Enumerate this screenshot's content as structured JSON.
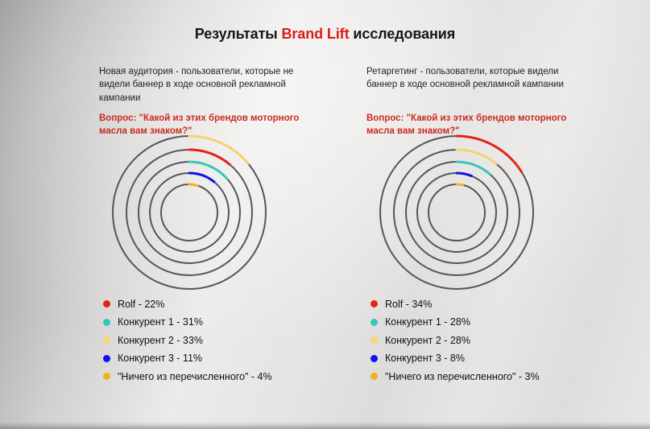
{
  "title": {
    "prefix": "Результаты ",
    "highlight": "Brand Lift",
    "suffix": " исследования"
  },
  "colors": {
    "title_text": "#161616",
    "brand_red": "#d81e14",
    "question_red": "#cb2a20",
    "ring_gray": "#54555b",
    "body_text": "#222222"
  },
  "rings_layout": {
    "ring_radii": [
      95,
      78,
      63,
      49,
      35
    ],
    "ring_stroke_width": 2,
    "arc_stroke_width": 3,
    "start_angle": "top",
    "direction": "clockwise"
  },
  "chart_data": [
    {
      "type": "radial-ring-chart",
      "panel": "new_audience",
      "audience": "Новая аудитория - пользователи, которые не видели баннер в ходе основной рекламной кампании",
      "question": "Вопрос: \"Какой из этих брендов моторного масла вам знаком?\"",
      "unit": "%",
      "series": [
        {
          "name": "Rolf",
          "value": 22,
          "color": "#e2231a"
        },
        {
          "name": "Конкурент 1",
          "value": 31,
          "color": "#38c6b9"
        },
        {
          "name": "Конкурент 2",
          "value": 33,
          "color": "#f8d57d"
        },
        {
          "name": "Конкурент 3",
          "value": 11,
          "color": "#0f11ef"
        },
        {
          "name": "\"Ничего из перечисленного\"",
          "value": 4,
          "color": "#f5b01d"
        }
      ],
      "rings_outer_to_inner": [
        {
          "series": "Конкурент 2",
          "color": "#f6d173",
          "arc_deg": 50
        },
        {
          "series": "Rolf",
          "color": "#e2231a",
          "arc_deg": 40
        },
        {
          "series": "Конкурент 1",
          "color": "#38c6b9",
          "arc_deg": 48
        },
        {
          "series": "Конкурент 3",
          "color": "#0f11ef",
          "arc_deg": 39
        },
        {
          "series": "\"Ничего из перечисленного\"",
          "color": "#f5b01d",
          "arc_deg": 17
        }
      ],
      "legend": [
        {
          "label": "Rolf - 22%",
          "color": "#e2231a"
        },
        {
          "label": "Конкурент 1 - 31%",
          "color": "#38c6b9"
        },
        {
          "label": "Конкурент 2 - 33%",
          "color": "#f8d57d"
        },
        {
          "label": "Конкурент 3 - 11%",
          "color": "#0f11ef"
        },
        {
          "label": "\"Ничего из перечисленного\" - 4%",
          "color": "#f5b01d"
        }
      ]
    },
    {
      "type": "radial-ring-chart",
      "panel": "retargeting",
      "audience": "Ретаргетинг - пользователи, которые видели баннер в ходе основной рекламной кампании",
      "question": "Вопрос: \"Какой из этих брендов моторного масла вам знаком?\"",
      "unit": "%",
      "series": [
        {
          "name": "Rolf",
          "value": 34,
          "color": "#e2231a"
        },
        {
          "name": "Конкурент 1",
          "value": 28,
          "color": "#38c6b9"
        },
        {
          "name": "Конкурент 2",
          "value": 28,
          "color": "#f8d57d"
        },
        {
          "name": "Конкурент 3",
          "value": 8,
          "color": "#0f11ef"
        },
        {
          "name": "\"Ничего из перечисленного\"",
          "value": 3,
          "color": "#f5b01d"
        }
      ],
      "rings_outer_to_inner": [
        {
          "series": "Rolf",
          "color": "#e2231a",
          "arc_deg": 58
        },
        {
          "series": "Конкурент 2",
          "color": "#f6d173",
          "arc_deg": 39
        },
        {
          "series": "Конкурент 1",
          "color": "#38c6b9",
          "arc_deg": 41
        },
        {
          "series": "Конкурент 3",
          "color": "#0f11ef",
          "arc_deg": 22
        },
        {
          "series": "\"Ничего из перечисленного\"",
          "color": "#f5b01d",
          "arc_deg": 12
        }
      ],
      "legend": [
        {
          "label": "Rolf - 34%",
          "color": "#e2231a"
        },
        {
          "label": "Конкурент 1 - 28%",
          "color": "#38c6b9"
        },
        {
          "label": "Конкурент 2 - 28%",
          "color": "#f8d57d"
        },
        {
          "label": "Конкурент 3 - 8%",
          "color": "#0f11ef"
        },
        {
          "label": "\"Ничего из перечисленного\" - 3%",
          "color": "#f5b01d"
        }
      ]
    }
  ]
}
